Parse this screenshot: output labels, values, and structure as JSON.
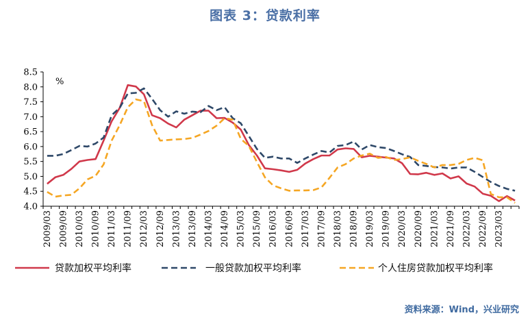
{
  "title": "图表 3：贷款利率",
  "source": "资料来源：Wind，兴业研究",
  "colors": {
    "red": "#d0384a",
    "navy": "#2e4868",
    "orange": "#f5a623",
    "axis": "#000000"
  },
  "chart_data": {
    "type": "line",
    "ylabel": "%",
    "ylim": [
      4.0,
      8.5
    ],
    "yticks": [
      "4.0",
      "4.5",
      "5.0",
      "5.5",
      "6.0",
      "6.5",
      "7.0",
      "7.5",
      "8.0",
      "8.5"
    ],
    "xticks": [
      "2009/03",
      "2009/09",
      "2010/03",
      "2010/09",
      "2011/03",
      "2011/09",
      "2012/03",
      "2012/09",
      "2013/03",
      "2013/09",
      "2014/03",
      "2014/09",
      "2015/03",
      "2015/09",
      "2016/03",
      "2016/09",
      "2017/03",
      "2017/09",
      "2018/03",
      "2018/09",
      "2019/03",
      "2019/09",
      "2020/03",
      "2020/09",
      "2021/03",
      "2021/09",
      "2022/03",
      "2022/09",
      "2023/03"
    ],
    "grid": false,
    "legend_position": "bottom",
    "series": [
      {
        "name": "贷款加权平均利率",
        "style": "solid",
        "color": "#d0384a",
        "values": [
          4.75,
          4.97,
          5.05,
          5.25,
          5.5,
          5.55,
          5.58,
          6.2,
          6.85,
          7.3,
          8.06,
          8.01,
          7.75,
          7.05,
          6.95,
          6.77,
          6.64,
          6.9,
          7.05,
          7.2,
          7.2,
          6.95,
          6.96,
          6.8,
          6.57,
          6.05,
          5.7,
          5.27,
          5.24,
          5.2,
          5.15,
          5.22,
          5.43,
          5.58,
          5.7,
          5.7,
          5.9,
          5.94,
          5.92,
          5.64,
          5.69,
          5.66,
          5.63,
          5.6,
          5.44,
          5.08,
          5.07,
          5.12,
          5.05,
          5.1,
          4.93,
          5.0,
          4.76,
          4.66,
          4.42,
          4.35,
          4.17,
          4.34,
          4.19
        ]
      },
      {
        "name": "一般贷款加权平均利率",
        "style": "dashed",
        "color": "#2e4868",
        "values": [
          5.69,
          5.69,
          5.75,
          5.88,
          6.02,
          6.0,
          6.1,
          6.3,
          7.05,
          7.3,
          7.78,
          7.8,
          7.95,
          7.6,
          7.22,
          7.0,
          7.18,
          7.1,
          7.17,
          7.15,
          7.36,
          7.22,
          7.32,
          6.95,
          6.78,
          6.35,
          5.92,
          5.62,
          5.66,
          5.6,
          5.6,
          5.45,
          5.6,
          5.73,
          5.85,
          5.8,
          6.02,
          6.05,
          6.17,
          5.9,
          6.05,
          5.98,
          5.95,
          5.85,
          5.74,
          5.65,
          5.38,
          5.35,
          5.31,
          5.3,
          5.26,
          5.3,
          5.3,
          5.15,
          4.98,
          4.81,
          4.68,
          4.58,
          4.52
        ]
      },
      {
        "name": "个人住房贷款加权平均利率",
        "style": "dashed",
        "color": "#f5a623",
        "values": [
          4.48,
          4.32,
          4.36,
          4.38,
          4.6,
          4.9,
          5.02,
          5.4,
          6.2,
          6.72,
          7.32,
          7.58,
          7.52,
          6.72,
          6.2,
          6.22,
          6.24,
          6.25,
          6.29,
          6.4,
          6.52,
          6.7,
          6.95,
          6.9,
          6.26,
          6.02,
          5.48,
          4.97,
          4.7,
          4.6,
          4.52,
          4.53,
          4.53,
          4.54,
          4.63,
          4.95,
          5.3,
          5.41,
          5.6,
          5.7,
          5.76,
          5.62,
          5.65,
          5.55,
          5.58,
          5.64,
          5.52,
          5.42,
          5.3,
          5.38,
          5.38,
          5.42,
          5.55,
          5.62,
          5.54,
          4.41,
          4.3,
          4.3,
          4.11
        ]
      }
    ]
  }
}
